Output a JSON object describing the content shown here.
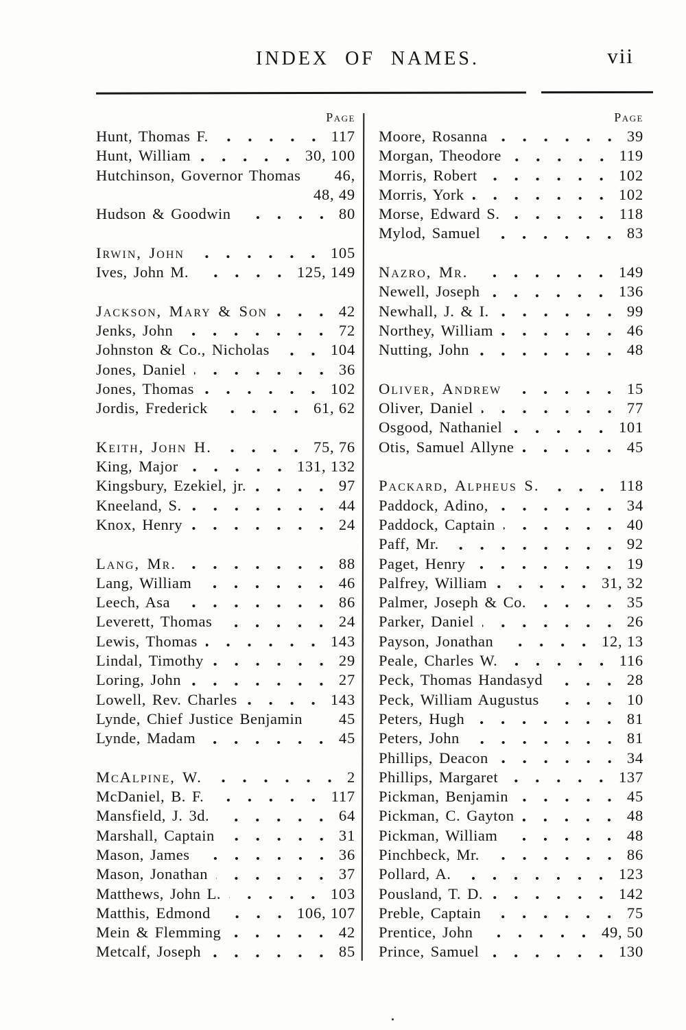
{
  "document": {
    "title": "INDEX OF NAMES.",
    "folio": "vii"
  },
  "columns": [
    {
      "header": "Page",
      "rows": [
        {
          "name": "Hunt, Thomas F.",
          "page": "117"
        },
        {
          "name": "Hunt, William",
          "page": "30, 100"
        },
        {
          "name": "Hutchinson, Governor Thomas",
          "page": "46,",
          "dots": false
        },
        {
          "cont": true,
          "page": "48, 49"
        },
        {
          "name": "Hudson & Goodwin",
          "page": "80"
        },
        {
          "gap": true
        },
        {
          "name": "Irwin, John",
          "page": "105",
          "sc": true
        },
        {
          "name": "Ives, John M.",
          "page": "125, 149"
        },
        {
          "gap": true
        },
        {
          "name": "Jackson, Mary & Son",
          "page": "42",
          "sc": true
        },
        {
          "name": "Jenks, John",
          "page": "72"
        },
        {
          "name": "Johnston & Co., Nicholas",
          "page": "104"
        },
        {
          "name": "Jones, Daniel",
          "page": "36"
        },
        {
          "name": "Jones, Thomas",
          "page": "102"
        },
        {
          "name": "Jordis, Frederick",
          "page": "61, 62"
        },
        {
          "gap": true
        },
        {
          "name": "Keith, John H.",
          "page": "75, 76",
          "sc": true
        },
        {
          "name": "King, Major",
          "page": "131, 132"
        },
        {
          "name": "Kingsbury, Ezekiel, jr.",
          "page": "97"
        },
        {
          "name": "Kneeland, S.",
          "page": "44"
        },
        {
          "name": "Knox, Henry",
          "page": "24"
        },
        {
          "gap": true
        },
        {
          "name": "Lang, Mr.",
          "page": "88",
          "sc": true
        },
        {
          "name": "Lang, William",
          "page": "46"
        },
        {
          "name": "Leech, Asa",
          "page": "86"
        },
        {
          "name": "Leverett, Thomas",
          "page": "24"
        },
        {
          "name": "Lewis, Thomas",
          "page": "143"
        },
        {
          "name": "Lindal, Timothy",
          "page": "29"
        },
        {
          "name": "Loring, John",
          "page": "27"
        },
        {
          "name": "Lowell, Rev. Charles",
          "page": "143"
        },
        {
          "name": "Lynde, Chief Justice Benjamin",
          "page": "45",
          "dots": false
        },
        {
          "name": "Lynde, Madam",
          "page": "45"
        },
        {
          "gap": true
        },
        {
          "name": "McAlpine, W.",
          "page": "2",
          "sc": true
        },
        {
          "name": "McDaniel, B. F.",
          "page": "117"
        },
        {
          "name": "Mansfield, J. 3d.",
          "page": "64"
        },
        {
          "name": "Marshall, Captain",
          "page": "31"
        },
        {
          "name": "Mason, James",
          "page": "36"
        },
        {
          "name": "Mason, Jonathan",
          "page": "37"
        },
        {
          "name": "Matthews, John L.",
          "page": "103"
        },
        {
          "name": "Matthis, Edmond",
          "page": "106, 107"
        },
        {
          "name": "Mein & Flemming",
          "page": "42"
        },
        {
          "name": "Metcalf, Joseph",
          "page": "85"
        }
      ]
    },
    {
      "header": "Page",
      "rows": [
        {
          "name": "Moore, Rosanna",
          "page": "39"
        },
        {
          "name": "Morgan, Theodore",
          "page": "119"
        },
        {
          "name": "Morris, Robert",
          "page": "102"
        },
        {
          "name": "Morris, York",
          "page": "102"
        },
        {
          "name": "Morse, Edward S.",
          "page": "118"
        },
        {
          "name": "Mylod, Samuel",
          "page": "83"
        },
        {
          "gap": true
        },
        {
          "name": "Nazro, Mr.",
          "page": "149",
          "sc": true
        },
        {
          "name": "Newell, Joseph",
          "page": "136"
        },
        {
          "name": "Newhall, J. & I.",
          "page": "99"
        },
        {
          "name": "Northey, William",
          "page": "46"
        },
        {
          "name": "Nutting, John",
          "page": "48"
        },
        {
          "gap": true
        },
        {
          "name": "Oliver, Andrew",
          "page": "15",
          "sc": true
        },
        {
          "name": "Oliver, Daniel",
          "page": "77"
        },
        {
          "name": "Osgood, Nathaniel",
          "page": "101"
        },
        {
          "name": "Otis, Samuel Allyne",
          "page": "45"
        },
        {
          "gap": true
        },
        {
          "name": "Packard, Alpheus S.",
          "page": "118",
          "sc": true
        },
        {
          "name": "Paddock, Adino,",
          "page": "34"
        },
        {
          "name": "Paddock, Captain",
          "page": "40"
        },
        {
          "name": "Paff, Mr.",
          "page": "92"
        },
        {
          "name": "Paget, Henry",
          "page": "19"
        },
        {
          "name": "Palfrey, William",
          "page": "31, 32"
        },
        {
          "name": "Palmer, Joseph & Co.",
          "page": "35"
        },
        {
          "name": "Parker, Daniel",
          "page": "26"
        },
        {
          "name": "Payson, Jonathan",
          "page": "12, 13"
        },
        {
          "name": "Peale, Charles W.",
          "page": "116"
        },
        {
          "name": "Peck, Thomas Handasyd",
          "page": "28"
        },
        {
          "name": "Peck, William Augustus",
          "page": "10"
        },
        {
          "name": "Peters, Hugh",
          "page": "81"
        },
        {
          "name": "Peters, John",
          "page": "81"
        },
        {
          "name": "Phillips, Deacon",
          "page": "34"
        },
        {
          "name": "Phillips, Margaret",
          "page": "137"
        },
        {
          "name": "Pickman, Benjamin",
          "page": "45"
        },
        {
          "name": "Pickman, C. Gayton",
          "page": "48"
        },
        {
          "name": "Pickman, William",
          "page": "48"
        },
        {
          "name": "Pinchbeck, Mr.",
          "page": "86"
        },
        {
          "name": "Pollard, A.",
          "page": "123"
        },
        {
          "name": "Pousland, T. D.",
          "page": "142"
        },
        {
          "name": "Preble, Captain",
          "page": "75"
        },
        {
          "name": "Prentice, John",
          "page": "49, 50"
        },
        {
          "name": "Prince, Samuel",
          "page": "130"
        }
      ]
    }
  ]
}
